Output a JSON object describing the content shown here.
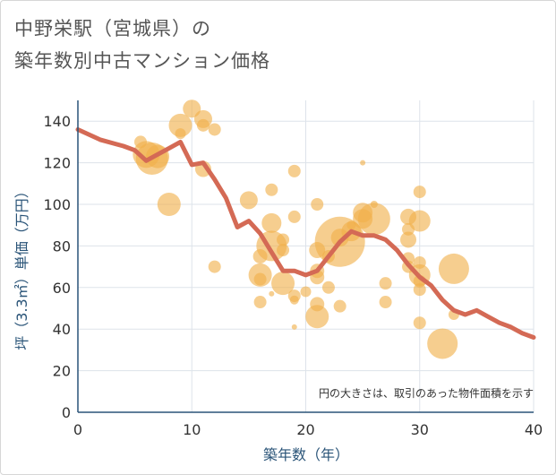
{
  "title_line1": "中野栄駅（宮城県）の",
  "title_line2": "築年数別中古マンション価格",
  "chart_data": {
    "type": "scatter",
    "xlabel": "築年数（年）",
    "ylabel": "坪（3.3㎡）単価（万円）",
    "xlim": [
      0,
      40
    ],
    "ylim": [
      0,
      150
    ],
    "xticks": [
      "0",
      "10",
      "20",
      "30",
      "40"
    ],
    "yticks": [
      "0",
      "20",
      "40",
      "60",
      "80",
      "100",
      "120",
      "140"
    ],
    "grid": true,
    "note": "円の大きさは、取引のあった物件面積を示す",
    "colors": {
      "bubble": "#f0b04a",
      "line": "#d46a55",
      "grid": "#dde3ea",
      "axis": "#2a5478"
    },
    "bubbles": [
      {
        "x": 5.5,
        "y": 130,
        "r": 7
      },
      {
        "x": 6,
        "y": 124,
        "r": 15
      },
      {
        "x": 6.5,
        "y": 122,
        "r": 18
      },
      {
        "x": 7,
        "y": 123,
        "r": 13
      },
      {
        "x": 8,
        "y": 100,
        "r": 13
      },
      {
        "x": 9,
        "y": 138,
        "r": 13
      },
      {
        "x": 9,
        "y": 134,
        "r": 6
      },
      {
        "x": 10,
        "y": 146,
        "r": 10
      },
      {
        "x": 11,
        "y": 141,
        "r": 10
      },
      {
        "x": 11,
        "y": 138,
        "r": 7
      },
      {
        "x": 11,
        "y": 117,
        "r": 9
      },
      {
        "x": 12,
        "y": 136,
        "r": 7
      },
      {
        "x": 12,
        "y": 70,
        "r": 7
      },
      {
        "x": 15,
        "y": 102,
        "r": 10
      },
      {
        "x": 16,
        "y": 75,
        "r": 8
      },
      {
        "x": 16,
        "y": 66,
        "r": 13
      },
      {
        "x": 16,
        "y": 64,
        "r": 7
      },
      {
        "x": 16,
        "y": 53,
        "r": 7
      },
      {
        "x": 17,
        "y": 107,
        "r": 7
      },
      {
        "x": 17,
        "y": 91,
        "r": 11
      },
      {
        "x": 17,
        "y": 80,
        "r": 17
      },
      {
        "x": 17,
        "y": 57,
        "r": 3
      },
      {
        "x": 18,
        "y": 83,
        "r": 7
      },
      {
        "x": 18,
        "y": 78,
        "r": 7
      },
      {
        "x": 18,
        "y": 62,
        "r": 13
      },
      {
        "x": 19,
        "y": 116,
        "r": 7
      },
      {
        "x": 19,
        "y": 94,
        "r": 7
      },
      {
        "x": 19,
        "y": 56,
        "r": 7
      },
      {
        "x": 19,
        "y": 54,
        "r": 5
      },
      {
        "x": 19,
        "y": 41,
        "r": 3
      },
      {
        "x": 20,
        "y": 58,
        "r": 6
      },
      {
        "x": 21,
        "y": 100,
        "r": 7
      },
      {
        "x": 21,
        "y": 78,
        "r": 9
      },
      {
        "x": 21,
        "y": 68,
        "r": 8
      },
      {
        "x": 21,
        "y": 65,
        "r": 8
      },
      {
        "x": 21,
        "y": 52,
        "r": 8
      },
      {
        "x": 21,
        "y": 46,
        "r": 13
      },
      {
        "x": 22,
        "y": 75,
        "r": 7
      },
      {
        "x": 22,
        "y": 60,
        "r": 7
      },
      {
        "x": 23,
        "y": 84,
        "r": 10
      },
      {
        "x": 23,
        "y": 82,
        "r": 28
      },
      {
        "x": 23,
        "y": 51,
        "r": 7
      },
      {
        "x": 24,
        "y": 87,
        "r": 11
      },
      {
        "x": 24,
        "y": 90,
        "r": 5
      },
      {
        "x": 25,
        "y": 120,
        "r": 3
      },
      {
        "x": 25,
        "y": 96,
        "r": 11
      },
      {
        "x": 25,
        "y": 93,
        "r": 11
      },
      {
        "x": 26,
        "y": 93,
        "r": 18
      },
      {
        "x": 26,
        "y": 100,
        "r": 4
      },
      {
        "x": 27,
        "y": 62,
        "r": 7
      },
      {
        "x": 27,
        "y": 53,
        "r": 7
      },
      {
        "x": 29,
        "y": 94,
        "r": 9
      },
      {
        "x": 29,
        "y": 88,
        "r": 7
      },
      {
        "x": 29,
        "y": 83,
        "r": 9
      },
      {
        "x": 29,
        "y": 74,
        "r": 7
      },
      {
        "x": 29,
        "y": 70,
        "r": 7
      },
      {
        "x": 30,
        "y": 106,
        "r": 7
      },
      {
        "x": 30,
        "y": 92,
        "r": 12
      },
      {
        "x": 30,
        "y": 72,
        "r": 7
      },
      {
        "x": 30,
        "y": 66,
        "r": 12
      },
      {
        "x": 30,
        "y": 63,
        "r": 7
      },
      {
        "x": 30,
        "y": 59,
        "r": 7
      },
      {
        "x": 30,
        "y": 43,
        "r": 7
      },
      {
        "x": 32,
        "y": 33,
        "r": 17
      },
      {
        "x": 33,
        "y": 69,
        "r": 17
      },
      {
        "x": 33,
        "y": 47,
        "r": 6
      }
    ],
    "line": {
      "x": [
        0,
        2,
        4,
        5,
        6,
        7,
        8,
        9,
        10,
        11,
        12,
        13,
        14,
        15,
        16,
        17,
        18,
        19,
        20,
        21,
        22,
        23,
        24,
        25,
        26,
        27,
        28,
        29,
        30,
        31,
        32,
        33,
        34,
        35,
        36,
        37,
        38,
        39,
        40
      ],
      "y": [
        136,
        131,
        128,
        126,
        121,
        124,
        127,
        130,
        119,
        120,
        112,
        103,
        89,
        92,
        86,
        77,
        68,
        68,
        66,
        68,
        75,
        82,
        87,
        85,
        85,
        83,
        78,
        71,
        65,
        61,
        54,
        49,
        47,
        49,
        46,
        43,
        41,
        38,
        36
      ]
    }
  }
}
